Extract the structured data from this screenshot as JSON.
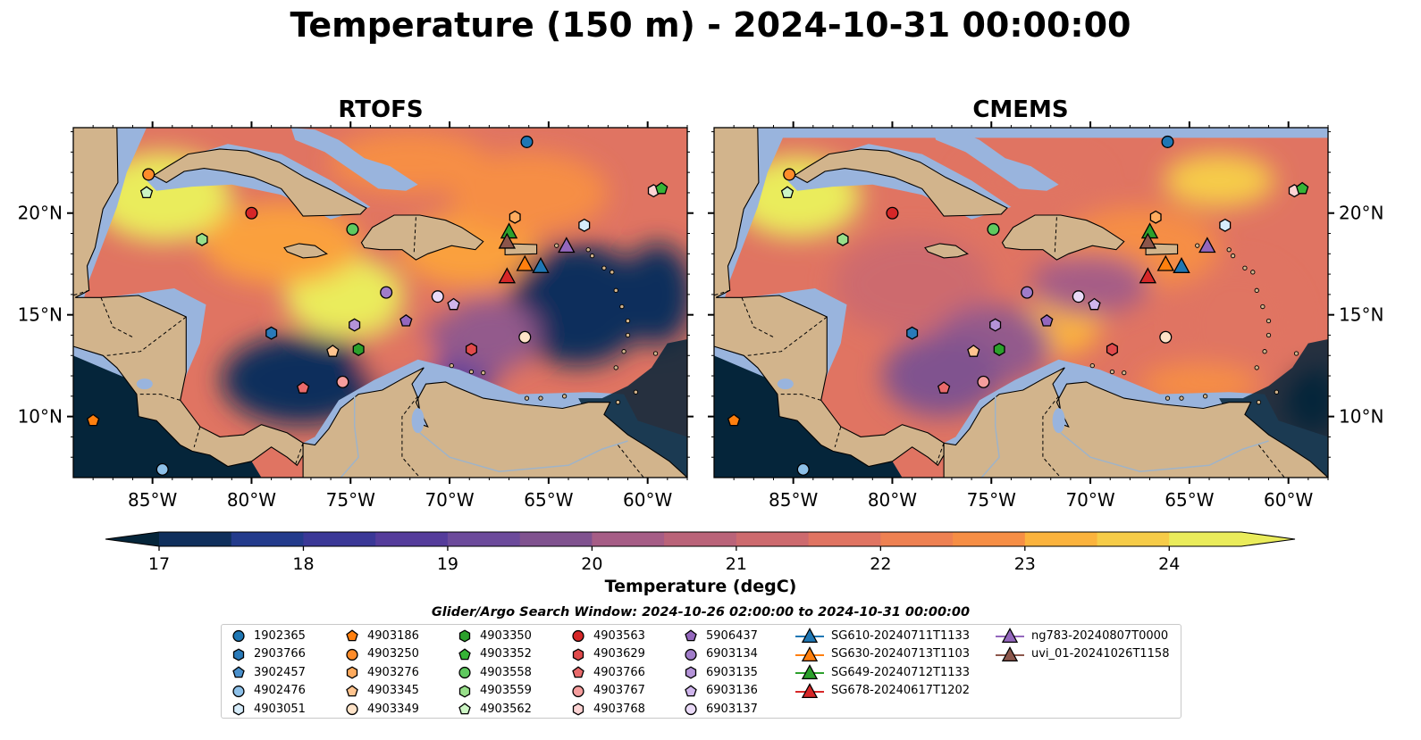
{
  "title": "Temperature (150 m) - 2024-10-31 00:00:00",
  "panels": [
    {
      "title": "RTOFS"
    },
    {
      "title": "CMEMS"
    }
  ],
  "map": {
    "lon_range": [
      -89,
      -58
    ],
    "lat_range": [
      7,
      24.2
    ],
    "lon_ticks": [
      -85,
      -80,
      -75,
      -70,
      -65,
      -60
    ],
    "lon_tick_labels": [
      "85°W",
      "80°W",
      "75°W",
      "70°W",
      "65°W",
      "60°W"
    ],
    "lat_ticks": [
      10,
      15,
      20
    ],
    "lat_tick_labels": [
      "10°N",
      "15°N",
      "20°N"
    ],
    "land_color": "#d2b48c",
    "shelf_color": "#99b4dd"
  },
  "colorbar": {
    "label": "Temperature (degC)",
    "min": 16.75,
    "max": 24.5,
    "ticks": [
      17,
      18,
      19,
      20,
      21,
      22,
      23,
      24
    ],
    "tick_labels": [
      "17",
      "18",
      "19",
      "20",
      "21",
      "22",
      "23",
      "24"
    ],
    "colors": [
      "#05253a",
      "#0f2f5c",
      "#233b8c",
      "#3b3897",
      "#553c9b",
      "#6c4a9b",
      "#80528f",
      "#935a8c",
      "#a65d86",
      "#ba6379",
      "#cd6a6e",
      "#e07462",
      "#ee8152",
      "#f68e45",
      "#faa03c",
      "#fbb33d",
      "#f6cc48",
      "#eaec5b"
    ]
  },
  "search_window": "Glider/Argo Search Window: 2024-10-26 02:00:00 to 2024-10-31 00:00:00",
  "legend": [
    {
      "label": "1902365",
      "shape": "circle",
      "color": "#1f77b4"
    },
    {
      "label": "2903766",
      "shape": "hexagon",
      "color": "#2a7ab9"
    },
    {
      "label": "3902457",
      "shape": "pentagon",
      "color": "#4a90cc"
    },
    {
      "label": "4902476",
      "shape": "circle",
      "color": "#8dc0e8"
    },
    {
      "label": "4903051",
      "shape": "hexagon",
      "color": "#d6ecfa"
    },
    {
      "label": "4903186",
      "shape": "pentagon",
      "color": "#ff7f0e"
    },
    {
      "label": "4903250",
      "shape": "circle",
      "color": "#ff8c2a"
    },
    {
      "label": "4903276",
      "shape": "hexagon",
      "color": "#ffab5e"
    },
    {
      "label": "4903345",
      "shape": "pentagon",
      "color": "#ffc48f"
    },
    {
      "label": "4903349",
      "shape": "circle",
      "color": "#ffe3c8"
    },
    {
      "label": "4903350",
      "shape": "hexagon",
      "color": "#2ca02c"
    },
    {
      "label": "4903352",
      "shape": "pentagon",
      "color": "#36b436"
    },
    {
      "label": "4903558",
      "shape": "circle",
      "color": "#5fc95f"
    },
    {
      "label": "4903559",
      "shape": "hexagon",
      "color": "#98df8a"
    },
    {
      "label": "4903562",
      "shape": "pentagon",
      "color": "#ccf5c4"
    },
    {
      "label": "4903563",
      "shape": "circle",
      "color": "#d62728"
    },
    {
      "label": "4903629",
      "shape": "hexagon",
      "color": "#e04a4b"
    },
    {
      "label": "4903766",
      "shape": "pentagon",
      "color": "#e96a6b"
    },
    {
      "label": "4903767",
      "shape": "circle",
      "color": "#f59d9d"
    },
    {
      "label": "4903768",
      "shape": "hexagon",
      "color": "#fcd3d3"
    },
    {
      "label": "5906437",
      "shape": "pentagon",
      "color": "#9467bd"
    },
    {
      "label": "6903134",
      "shape": "circle",
      "color": "#a07cc9"
    },
    {
      "label": "6903135",
      "shape": "hexagon",
      "color": "#b493d8"
    },
    {
      "label": "6903136",
      "shape": "pentagon",
      "color": "#cfb5ec"
    },
    {
      "label": "6903137",
      "shape": "circle",
      "color": "#e9d9f7"
    },
    {
      "label": "SG610-20240711T1133",
      "shape": "triangle-line",
      "color": "#1f77b4"
    },
    {
      "label": "SG630-20240713T1103",
      "shape": "triangle-line",
      "color": "#ff7f0e"
    },
    {
      "label": "SG649-20240712T1133",
      "shape": "triangle-line",
      "color": "#2ca02c"
    },
    {
      "label": "SG678-20240617T1202",
      "shape": "triangle-line",
      "color": "#d62728"
    },
    {
      "label": "ng783-20240807T0000",
      "shape": "triangle-line",
      "color": "#9467bd"
    },
    {
      "label": "uvi_01-20241026T1158",
      "shape": "triangle-line",
      "color": "#8c564b"
    }
  ],
  "markers": [
    {
      "id": "1902365",
      "lon": -66.1,
      "lat": 23.5
    },
    {
      "id": "4903250",
      "lon": -85.2,
      "lat": 21.9
    },
    {
      "id": "4903562",
      "lon": -85.3,
      "lat": 21.0
    },
    {
      "id": "4903563",
      "lon": -80.0,
      "lat": 20.0
    },
    {
      "id": "4903559",
      "lon": -82.5,
      "lat": 18.7
    },
    {
      "id": "4903558",
      "lon": -74.9,
      "lat": 19.2
    },
    {
      "id": "4903276",
      "lon": -66.7,
      "lat": 19.8
    },
    {
      "id": "4903051",
      "lon": -63.2,
      "lat": 19.4
    },
    {
      "id": "4903768",
      "lon": -59.7,
      "lat": 21.1
    },
    {
      "id": "4903352",
      "lon": -59.3,
      "lat": 21.2
    },
    {
      "id": "6903134",
      "lon": -73.2,
      "lat": 16.1
    },
    {
      "id": "6903137",
      "lon": -70.6,
      "lat": 15.9
    },
    {
      "id": "6903136",
      "lon": -69.8,
      "lat": 15.5
    },
    {
      "id": "6903135",
      "lon": -74.8,
      "lat": 14.5
    },
    {
      "id": "5906437",
      "lon": -72.2,
      "lat": 14.7
    },
    {
      "id": "2903766",
      "lon": -79.0,
      "lat": 14.1
    },
    {
      "id": "4903345",
      "lon": -75.9,
      "lat": 13.2
    },
    {
      "id": "4903350",
      "lon": -74.6,
      "lat": 13.3
    },
    {
      "id": "4903629",
      "lon": -68.9,
      "lat": 13.3
    },
    {
      "id": "4903349",
      "lon": -66.2,
      "lat": 13.9
    },
    {
      "id": "4903767",
      "lon": -75.4,
      "lat": 11.7
    },
    {
      "id": "4903766",
      "lon": -77.4,
      "lat": 11.4
    },
    {
      "id": "4903186",
      "lon": -88.0,
      "lat": 9.8
    },
    {
      "id": "4902476",
      "lon": -84.5,
      "lat": 7.4
    },
    {
      "id": "SG649-20240712T1133",
      "lon": -67.0,
      "lat": 19.1
    },
    {
      "id": "uvi_01-20241026T1158",
      "lon": -67.1,
      "lat": 18.6
    },
    {
      "id": "SG630-20240713T1103",
      "lon": -66.2,
      "lat": 17.5
    },
    {
      "id": "SG610-20240711T1133",
      "lon": -65.4,
      "lat": 17.4
    },
    {
      "id": "SG678-20240617T1202",
      "lon": -67.1,
      "lat": 16.9
    },
    {
      "id": "ng783-20240807T0000",
      "lon": -64.1,
      "lat": 18.4
    }
  ]
}
